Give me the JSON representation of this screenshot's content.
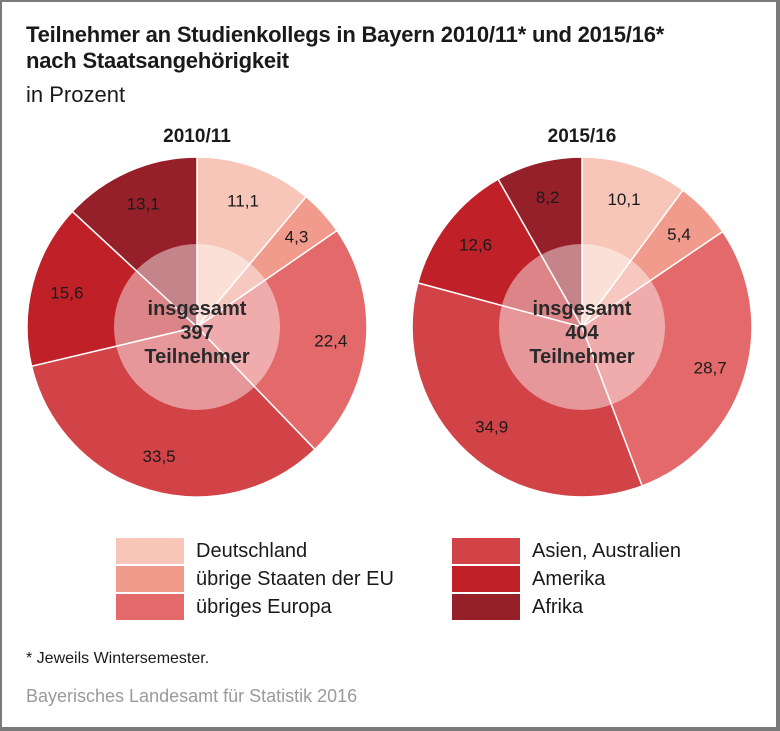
{
  "title": "Teilnehmer an Studienkollegs in Bayern 2010/11* und 2015/16*\nnach Staatsangehörigkeit",
  "subtitle": "in Prozent",
  "footnote": "* Jeweils Wintersemester.",
  "source": "Bayerisches Landesamt für Statistik 2016",
  "colors": {
    "Deutschland": "#f7c6b8",
    "übrige Staaten der EU": "#f19b8c",
    "übriges Europa": "#e4696a",
    "Asien, Australien": "#d24348",
    "Amerika": "#c02128",
    "Afrika": "#96202a"
  },
  "legend": [
    {
      "label": "Deutschland"
    },
    {
      "label": "übrige Staaten der EU"
    },
    {
      "label": "übriges Europa"
    },
    {
      "label": "Asien, Australien"
    },
    {
      "label": "Amerika"
    },
    {
      "label": "Afrika"
    }
  ],
  "chart_data": [
    {
      "type": "pie",
      "title": "2010/11",
      "center_text": [
        "insgesamt",
        "397",
        "Teilnehmer"
      ],
      "categories": [
        "Deutschland",
        "übrige Staaten der EU",
        "übriges Europa",
        "Asien, Australien",
        "Amerika",
        "Afrika"
      ],
      "values": [
        11.1,
        4.3,
        22.4,
        33.5,
        15.6,
        13.1
      ],
      "value_labels": [
        "11,1",
        "4,3",
        "22,4",
        "33,5",
        "15,6",
        "13,1"
      ]
    },
    {
      "type": "pie",
      "title": "2015/16",
      "center_text": [
        "insgesamt",
        "404",
        "Teilnehmer"
      ],
      "categories": [
        "Deutschland",
        "übrige Staaten der EU",
        "übriges Europa",
        "Asien, Australien",
        "Amerika",
        "Afrika"
      ],
      "values": [
        10.1,
        5.4,
        28.7,
        34.9,
        12.6,
        8.2
      ],
      "value_labels": [
        "10,1",
        "5,4",
        "28,7",
        "34,9",
        "12,6",
        "8,2"
      ]
    }
  ]
}
